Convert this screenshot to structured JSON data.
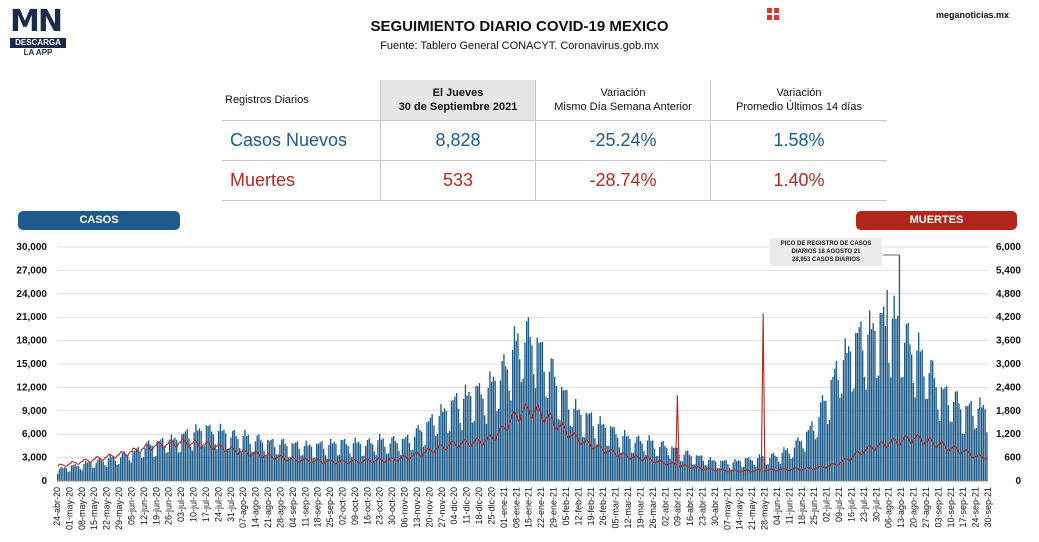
{
  "brand": {
    "logo_mn": "MN",
    "logo_bar": "DESCARGA",
    "logo_app": "LA APP",
    "site": "meganoticias.mx",
    "icon": "grid-logo-icon"
  },
  "header": {
    "title": "SEGUIMIENTO DIARIO COVID-19 MEXICO",
    "subtitle": "Fuente: Tablero General CONACYT. Coronavirus.gob.mx"
  },
  "stats": {
    "col_label": "Registros Diarios",
    "col_day_1": "El Jueves",
    "col_day_2": "30 de Septiembre 2021",
    "col_var_1_a": "Variación",
    "col_var_1_b": "Mismo Día Semana Anterior",
    "col_var_2_a": "Variación",
    "col_var_2_b": "Promedio Últimos 14 días",
    "casos": {
      "label": "Casos Nuevos",
      "value": "8,828",
      "var_week": "-25.24%",
      "var_14": "1.58%"
    },
    "muertes": {
      "label": "Muertes",
      "value": "533",
      "var_week": "-28.74%",
      "var_14": "1.40%"
    }
  },
  "legend": {
    "casos": "CASOS",
    "muertes": "MUERTES"
  },
  "annotation": {
    "line1": "PICO DE REGISTRO DE CASOS",
    "line2": "DIARIOS 18 AGOSTO 21",
    "line3": "28,953 CASOS DIARIOS"
  },
  "chart_data": {
    "type": "bar",
    "x_start": "24-abr-20",
    "x_end": "30-sep-21",
    "xlabels": [
      "24-abr-20",
      "01-may-20",
      "08-may-20",
      "15-may-20",
      "22-may-20",
      "29-may-20",
      "05-jun-20",
      "12-jun-20",
      "19-jun-20",
      "26-jun-20",
      "03-jul-20",
      "10-jul-20",
      "17-jul-20",
      "24-jul-20",
      "31-jul-20",
      "07-ago-20",
      "14-ago-20",
      "21-ago-20",
      "28-ago-20",
      "04-sep-20",
      "11-sep-20",
      "18-sep-20",
      "25-sep-20",
      "02-oct-20",
      "09-oct-20",
      "16-oct-20",
      "23-oct-20",
      "30-oct-20",
      "06-nov-20",
      "13-nov-20",
      "20-nov-20",
      "27-nov-20",
      "04-dic-20",
      "11-dic-20",
      "18-dic-20",
      "25-dic-20",
      "01-ene-21",
      "08-ene-21",
      "15-ene-21",
      "22-ene-21",
      "29-ene-21",
      "05-feb-21",
      "12-feb-21",
      "19-feb-21",
      "26-feb-21",
      "05-mar-21",
      "12-mar-21",
      "19-mar-21",
      "26-mar-21",
      "02-abr-21",
      "09-abr-21",
      "16-abr-21",
      "23-abr-21",
      "30-abr-21",
      "07-may-21",
      "14-may-21",
      "21-may-21",
      "28-may-21",
      "04-jun-21",
      "11-jun-21",
      "18-jun-21",
      "25-jun-21",
      "02-jul-21",
      "09-jul-21",
      "16-jul-21",
      "23-jul-21",
      "30-jul-21",
      "06-ago-21",
      "13-ago-21",
      "20-ago-21",
      "27-ago-21",
      "03-sep-21",
      "10-sep-21",
      "17-sep-21",
      "24-sep-21",
      "30-sep-21"
    ],
    "y_left": {
      "min": 0,
      "max": 30000,
      "ticks": [
        "0",
        "3,000",
        "6,000",
        "9,000",
        "12,000",
        "15,000",
        "18,000",
        "21,000",
        "24,000",
        "27,000",
        "30,000"
      ]
    },
    "y_right": {
      "min": 0,
      "max": 6000,
      "ticks": [
        "0",
        "600",
        "1,200",
        "1,800",
        "2,400",
        "3,000",
        "3,600",
        "4,200",
        "4,800",
        "5,400",
        "6,000"
      ]
    },
    "series": [
      {
        "name": "Casos",
        "type": "bar",
        "axis": "left",
        "color": "#1f5d8c",
        "weekly_avg": [
          1400,
          1700,
          2000,
          2300,
          2600,
          2900,
          3400,
          4000,
          4500,
          4800,
          5200,
          5800,
          6200,
          6000,
          5600,
          5300,
          5000,
          4800,
          4500,
          4300,
          4300,
          4200,
          4300,
          4600,
          4500,
          4400,
          4800,
          4700,
          4800,
          5300,
          6500,
          7800,
          8900,
          9800,
          10500,
          10800,
          12500,
          15000,
          17500,
          17000,
          14000,
          11000,
          9000,
          7800,
          7000,
          6200,
          5400,
          4900,
          4800,
          4300,
          4100,
          3300,
          3000,
          2600,
          2300,
          2200,
          2500,
          2700,
          2900,
          3200,
          4000,
          5400,
          7400,
          11000,
          14500,
          16500,
          17500,
          18500,
          19500,
          18000,
          15500,
          14000,
          11000,
          10000,
          8500,
          8828
        ],
        "peaks": [
          {
            "date": "18-ago-21",
            "value": 28953
          }
        ]
      },
      {
        "name": "Muertes",
        "type": "line",
        "axis": "right",
        "color": "#b32a20",
        "weekly_avg": [
          330,
          380,
          430,
          480,
          530,
          580,
          650,
          720,
          780,
          820,
          850,
          830,
          800,
          760,
          700,
          640,
          600,
          560,
          520,
          480,
          460,
          440,
          430,
          420,
          430,
          440,
          460,
          460,
          500,
          560,
          640,
          720,
          800,
          830,
          850,
          900,
          1050,
          1350,
          1550,
          1550,
          1400,
          1200,
          1000,
          850,
          750,
          650,
          580,
          520,
          500,
          420,
          380,
          330,
          300,
          260,
          240,
          220,
          220,
          230,
          240,
          250,
          260,
          270,
          290,
          330,
          420,
          560,
          700,
          780,
          850,
          900,
          950,
          880,
          800,
          720,
          650,
          533
        ],
        "spikes": [
          {
            "date": "13-abr-21",
            "value": 2200
          },
          {
            "date": "01-jun-21",
            "value": 4300
          }
        ]
      }
    ]
  }
}
